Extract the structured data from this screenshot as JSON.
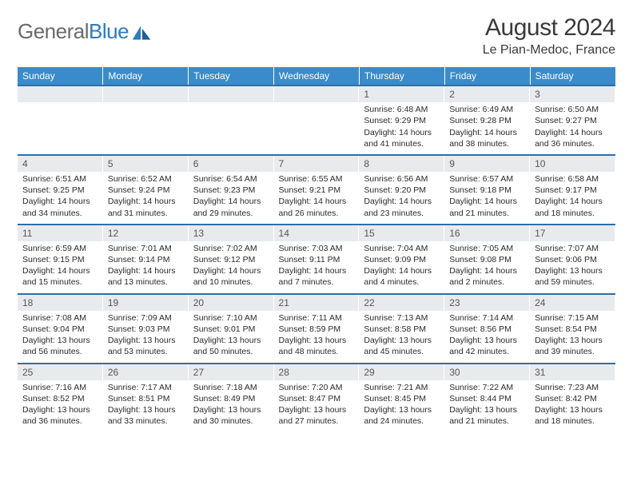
{
  "brand": {
    "part1": "General",
    "part2": "Blue"
  },
  "title": "August 2024",
  "location": "Le Pian-Medoc, France",
  "colors": {
    "header_bg": "#3a8bc9",
    "header_text": "#ffffff",
    "row_border": "#2f6ea8",
    "band_bg": "#e8ebed",
    "text": "#2b2b2b",
    "logo_gray": "#6a6a6a",
    "logo_blue": "#2f7bbf"
  },
  "day_names": [
    "Sunday",
    "Monday",
    "Tuesday",
    "Wednesday",
    "Thursday",
    "Friday",
    "Saturday"
  ],
  "weeks": [
    [
      null,
      null,
      null,
      null,
      {
        "n": "1",
        "sr": "6:48 AM",
        "ss": "9:29 PM",
        "dl": "14 hours and 41 minutes."
      },
      {
        "n": "2",
        "sr": "6:49 AM",
        "ss": "9:28 PM",
        "dl": "14 hours and 38 minutes."
      },
      {
        "n": "3",
        "sr": "6:50 AM",
        "ss": "9:27 PM",
        "dl": "14 hours and 36 minutes."
      }
    ],
    [
      {
        "n": "4",
        "sr": "6:51 AM",
        "ss": "9:25 PM",
        "dl": "14 hours and 34 minutes."
      },
      {
        "n": "5",
        "sr": "6:52 AM",
        "ss": "9:24 PM",
        "dl": "14 hours and 31 minutes."
      },
      {
        "n": "6",
        "sr": "6:54 AM",
        "ss": "9:23 PM",
        "dl": "14 hours and 29 minutes."
      },
      {
        "n": "7",
        "sr": "6:55 AM",
        "ss": "9:21 PM",
        "dl": "14 hours and 26 minutes."
      },
      {
        "n": "8",
        "sr": "6:56 AM",
        "ss": "9:20 PM",
        "dl": "14 hours and 23 minutes."
      },
      {
        "n": "9",
        "sr": "6:57 AM",
        "ss": "9:18 PM",
        "dl": "14 hours and 21 minutes."
      },
      {
        "n": "10",
        "sr": "6:58 AM",
        "ss": "9:17 PM",
        "dl": "14 hours and 18 minutes."
      }
    ],
    [
      {
        "n": "11",
        "sr": "6:59 AM",
        "ss": "9:15 PM",
        "dl": "14 hours and 15 minutes."
      },
      {
        "n": "12",
        "sr": "7:01 AM",
        "ss": "9:14 PM",
        "dl": "14 hours and 13 minutes."
      },
      {
        "n": "13",
        "sr": "7:02 AM",
        "ss": "9:12 PM",
        "dl": "14 hours and 10 minutes."
      },
      {
        "n": "14",
        "sr": "7:03 AM",
        "ss": "9:11 PM",
        "dl": "14 hours and 7 minutes."
      },
      {
        "n": "15",
        "sr": "7:04 AM",
        "ss": "9:09 PM",
        "dl": "14 hours and 4 minutes."
      },
      {
        "n": "16",
        "sr": "7:05 AM",
        "ss": "9:08 PM",
        "dl": "14 hours and 2 minutes."
      },
      {
        "n": "17",
        "sr": "7:07 AM",
        "ss": "9:06 PM",
        "dl": "13 hours and 59 minutes."
      }
    ],
    [
      {
        "n": "18",
        "sr": "7:08 AM",
        "ss": "9:04 PM",
        "dl": "13 hours and 56 minutes."
      },
      {
        "n": "19",
        "sr": "7:09 AM",
        "ss": "9:03 PM",
        "dl": "13 hours and 53 minutes."
      },
      {
        "n": "20",
        "sr": "7:10 AM",
        "ss": "9:01 PM",
        "dl": "13 hours and 50 minutes."
      },
      {
        "n": "21",
        "sr": "7:11 AM",
        "ss": "8:59 PM",
        "dl": "13 hours and 48 minutes."
      },
      {
        "n": "22",
        "sr": "7:13 AM",
        "ss": "8:58 PM",
        "dl": "13 hours and 45 minutes."
      },
      {
        "n": "23",
        "sr": "7:14 AM",
        "ss": "8:56 PM",
        "dl": "13 hours and 42 minutes."
      },
      {
        "n": "24",
        "sr": "7:15 AM",
        "ss": "8:54 PM",
        "dl": "13 hours and 39 minutes."
      }
    ],
    [
      {
        "n": "25",
        "sr": "7:16 AM",
        "ss": "8:52 PM",
        "dl": "13 hours and 36 minutes."
      },
      {
        "n": "26",
        "sr": "7:17 AM",
        "ss": "8:51 PM",
        "dl": "13 hours and 33 minutes."
      },
      {
        "n": "27",
        "sr": "7:18 AM",
        "ss": "8:49 PM",
        "dl": "13 hours and 30 minutes."
      },
      {
        "n": "28",
        "sr": "7:20 AM",
        "ss": "8:47 PM",
        "dl": "13 hours and 27 minutes."
      },
      {
        "n": "29",
        "sr": "7:21 AM",
        "ss": "8:45 PM",
        "dl": "13 hours and 24 minutes."
      },
      {
        "n": "30",
        "sr": "7:22 AM",
        "ss": "8:44 PM",
        "dl": "13 hours and 21 minutes."
      },
      {
        "n": "31",
        "sr": "7:23 AM",
        "ss": "8:42 PM",
        "dl": "13 hours and 18 minutes."
      }
    ]
  ],
  "labels": {
    "sunrise": "Sunrise:",
    "sunset": "Sunset:",
    "daylight": "Daylight:"
  }
}
